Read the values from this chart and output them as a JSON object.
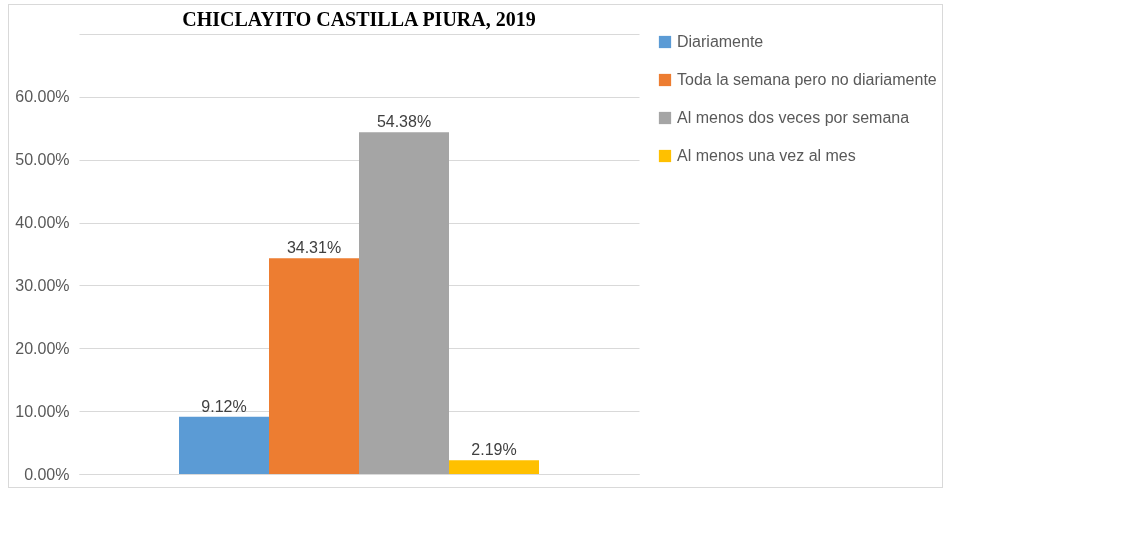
{
  "chart_data": {
    "type": "bar",
    "title": "CHICLAYITO CASTILLA PIURA, 2019",
    "categories": [
      null
    ],
    "series": [
      {
        "name": "Diariamente",
        "color": "#5b9bd5",
        "values": [
          9.12
        ],
        "value_labels": [
          "9.12%"
        ]
      },
      {
        "name": "Toda la semana pero no diariamente",
        "color": "#ed7d31",
        "values": [
          34.31
        ],
        "value_labels": [
          "34.31%"
        ]
      },
      {
        "name": "Al menos dos veces por semana",
        "color": "#a5a5a5",
        "values": [
          54.38
        ],
        "value_labels": [
          "54.38%"
        ]
      },
      {
        "name": "Al menos una vez al mes",
        "color": "#ffc000",
        "values": [
          2.19
        ],
        "value_labels": [
          "2.19%"
        ]
      }
    ],
    "ylim": [
      0,
      70
    ],
    "yticks": [
      {
        "value": 0,
        "label": "0.00%"
      },
      {
        "value": 10,
        "label": "10.00%"
      },
      {
        "value": 20,
        "label": "20.00%"
      },
      {
        "value": 30,
        "label": "30.00%"
      },
      {
        "value": 40,
        "label": "40.00%"
      },
      {
        "value": 50,
        "label": "50.00%"
      },
      {
        "value": 60,
        "label": "60.00%"
      },
      {
        "value": 70,
        "label": null
      }
    ],
    "grid": "y",
    "legend": "right",
    "tick_labels": "y"
  }
}
